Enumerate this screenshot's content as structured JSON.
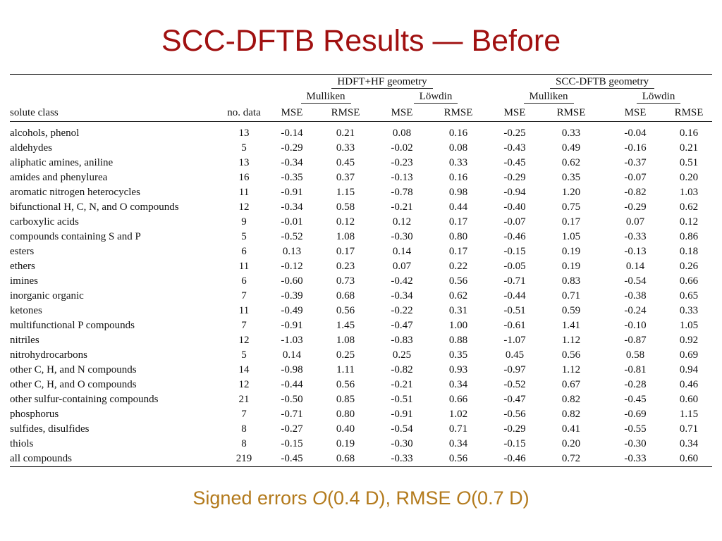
{
  "title": "SCC-DFTB Results — Before",
  "table": {
    "groups": [
      "HDFT+HF geometry",
      "SCC-DFTB geometry"
    ],
    "subgroups": [
      "Mulliken",
      "Löwdin",
      "Mulliken",
      "Löwdin"
    ],
    "col_solute": "solute class",
    "col_ndata": "no. data",
    "metrics": [
      "MSE",
      "RMSE",
      "MSE",
      "RMSE",
      "MSE",
      "RMSE",
      "MSE",
      "RMSE"
    ],
    "rows": [
      {
        "name": "alcohols, phenol",
        "n": "13",
        "v": [
          "-0.14",
          "0.21",
          "0.08",
          "0.16",
          "-0.25",
          "0.33",
          "-0.04",
          "0.16"
        ]
      },
      {
        "name": "aldehydes",
        "n": "5",
        "v": [
          "-0.29",
          "0.33",
          "-0.02",
          "0.08",
          "-0.43",
          "0.49",
          "-0.16",
          "0.21"
        ]
      },
      {
        "name": "aliphatic amines, aniline",
        "n": "13",
        "v": [
          "-0.34",
          "0.45",
          "-0.23",
          "0.33",
          "-0.45",
          "0.62",
          "-0.37",
          "0.51"
        ]
      },
      {
        "name": "amides and phenylurea",
        "n": "16",
        "v": [
          "-0.35",
          "0.37",
          "-0.13",
          "0.16",
          "-0.29",
          "0.35",
          "-0.07",
          "0.20"
        ]
      },
      {
        "name": "aromatic nitrogen heterocycles",
        "n": "11",
        "v": [
          "-0.91",
          "1.15",
          "-0.78",
          "0.98",
          "-0.94",
          "1.20",
          "-0.82",
          "1.03"
        ]
      },
      {
        "name": "bifunctional H, C, N, and O compounds",
        "n": "12",
        "v": [
          "-0.34",
          "0.58",
          "-0.21",
          "0.44",
          "-0.40",
          "0.75",
          "-0.29",
          "0.62"
        ]
      },
      {
        "name": "carboxylic acids",
        "n": "9",
        "v": [
          "-0.01",
          "0.12",
          "0.12",
          "0.17",
          "-0.07",
          "0.17",
          "0.07",
          "0.12"
        ]
      },
      {
        "name": "compounds containing S and P",
        "n": "5",
        "v": [
          "-0.52",
          "1.08",
          "-0.30",
          "0.80",
          "-0.46",
          "1.05",
          "-0.33",
          "0.86"
        ]
      },
      {
        "name": "esters",
        "n": "6",
        "v": [
          "0.13",
          "0.17",
          "0.14",
          "0.17",
          "-0.15",
          "0.19",
          "-0.13",
          "0.18"
        ]
      },
      {
        "name": "ethers",
        "n": "11",
        "v": [
          "-0.12",
          "0.23",
          "0.07",
          "0.22",
          "-0.05",
          "0.19",
          "0.14",
          "0.26"
        ]
      },
      {
        "name": "imines",
        "n": "6",
        "v": [
          "-0.60",
          "0.73",
          "-0.42",
          "0.56",
          "-0.71",
          "0.83",
          "-0.54",
          "0.66"
        ]
      },
      {
        "name": "inorganic organic",
        "n": "7",
        "v": [
          "-0.39",
          "0.68",
          "-0.34",
          "0.62",
          "-0.44",
          "0.71",
          "-0.38",
          "0.65"
        ]
      },
      {
        "name": "ketones",
        "n": "11",
        "v": [
          "-0.49",
          "0.56",
          "-0.22",
          "0.31",
          "-0.51",
          "0.59",
          "-0.24",
          "0.33"
        ]
      },
      {
        "name": "multifunctional P compounds",
        "n": "7",
        "v": [
          "-0.91",
          "1.45",
          "-0.47",
          "1.00",
          "-0.61",
          "1.41",
          "-0.10",
          "1.05"
        ]
      },
      {
        "name": "nitriles",
        "n": "12",
        "v": [
          "-1.03",
          "1.08",
          "-0.83",
          "0.88",
          "-1.07",
          "1.12",
          "-0.87",
          "0.92"
        ]
      },
      {
        "name": "nitrohydrocarbons",
        "n": "5",
        "v": [
          "0.14",
          "0.25",
          "0.25",
          "0.35",
          "0.45",
          "0.56",
          "0.58",
          "0.69"
        ]
      },
      {
        "name": "other C, H, and N compounds",
        "n": "14",
        "v": [
          "-0.98",
          "1.11",
          "-0.82",
          "0.93",
          "-0.97",
          "1.12",
          "-0.81",
          "0.94"
        ]
      },
      {
        "name": "other C, H, and O compounds",
        "n": "12",
        "v": [
          "-0.44",
          "0.56",
          "-0.21",
          "0.34",
          "-0.52",
          "0.67",
          "-0.28",
          "0.46"
        ]
      },
      {
        "name": "other sulfur-containing compounds",
        "n": "21",
        "v": [
          "-0.50",
          "0.85",
          "-0.51",
          "0.66",
          "-0.47",
          "0.82",
          "-0.45",
          "0.60"
        ]
      },
      {
        "name": "phosphorus",
        "n": "7",
        "v": [
          "-0.71",
          "0.80",
          "-0.91",
          "1.02",
          "-0.56",
          "0.82",
          "-0.69",
          "1.15"
        ]
      },
      {
        "name": "sulfides, disulfides",
        "n": "8",
        "v": [
          "-0.27",
          "0.40",
          "-0.54",
          "0.71",
          "-0.29",
          "0.41",
          "-0.55",
          "0.71"
        ]
      },
      {
        "name": "thiols",
        "n": "8",
        "v": [
          "-0.15",
          "0.19",
          "-0.30",
          "0.34",
          "-0.15",
          "0.20",
          "-0.30",
          "0.34"
        ]
      },
      {
        "name": "all compounds",
        "n": "219",
        "v": [
          "-0.45",
          "0.68",
          "-0.33",
          "0.56",
          "-0.46",
          "0.72",
          "-0.33",
          "0.60"
        ]
      }
    ]
  },
  "footer": {
    "part1": "Signed errors ",
    "italic1": "O",
    "part2": "(0.4 D), RMSE ",
    "italic2": "O",
    "part3": "(0.7 D)"
  },
  "colors": {
    "title": "#a01010",
    "footer": "#b37a1c"
  }
}
